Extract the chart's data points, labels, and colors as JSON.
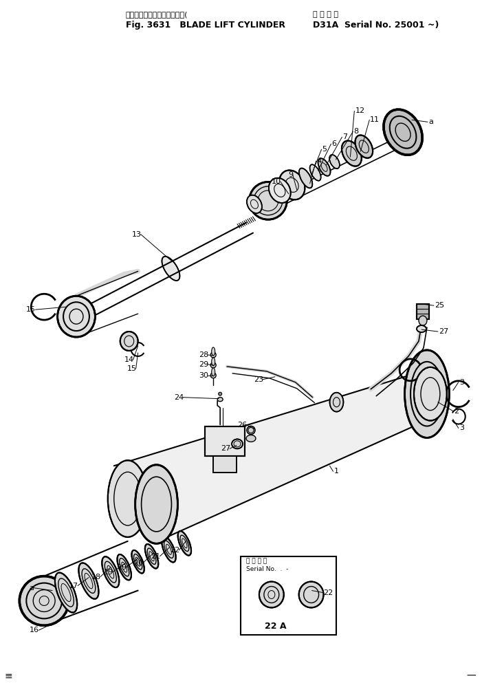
{
  "bg": "#ffffff",
  "lc": "#000000",
  "title1_jp": "ブレード　リフト　シリンダ(",
  "title1_en": "Fig. 3631   BLADE LIFT CYLINDER",
  "title2_jp": "通 用 号 機",
  "title2_en": "D31A  Serial No. 25001 ~)",
  "serial_box_jp": "通 用 号 機",
  "serial_box_en": "Serial No.  .  -"
}
